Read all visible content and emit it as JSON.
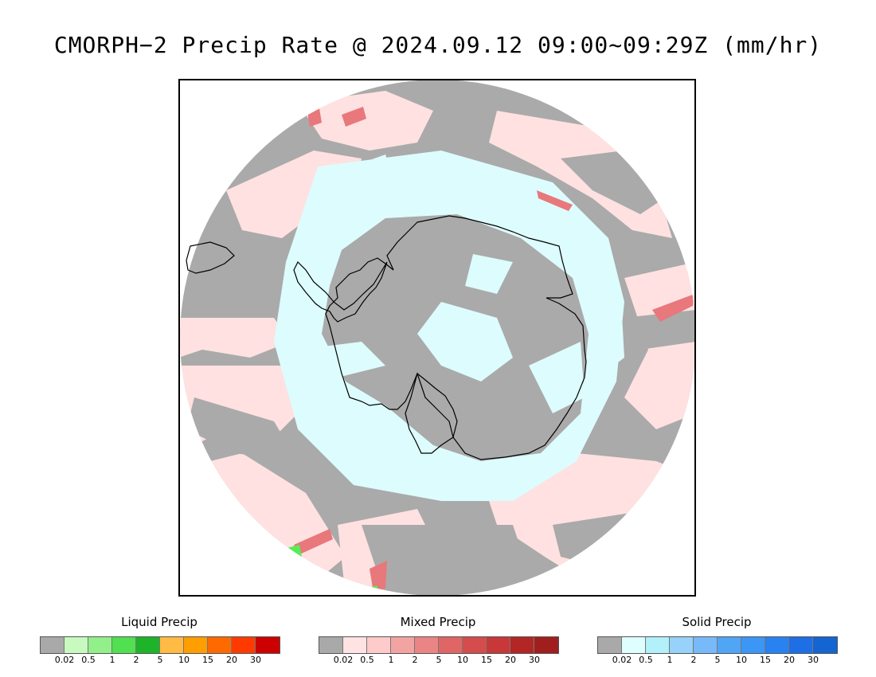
{
  "title": "CMORPH−2 Precip Rate @ 2024.09.12 09:00~09:29Z (mm/hr)",
  "map": {
    "projection": "south polar stereographic, circular extent",
    "category_colors": {
      "no_precip": "#ffffff",
      "below_threshold": "#aaaaaa",
      "mixed_light": "#ffe1e1",
      "solid_light": "#ddfcfd",
      "mixed_moderate": "#e8787b",
      "liquid_light": "#55ee55",
      "coastline": "#000000"
    }
  },
  "legends": [
    {
      "title": "Liquid Precip",
      "colors": [
        "#a9a9a9",
        "#c8fac0",
        "#92f08a",
        "#50e050",
        "#1eb42a",
        "#ffbb44",
        "#ff9e00",
        "#ff6a00",
        "#ff3a00",
        "#cc0000"
      ],
      "ticks": [
        "0.02",
        "0.5",
        "1",
        "2",
        "5",
        "10",
        "15",
        "20",
        "30"
      ]
    },
    {
      "title": "Mixed Precip",
      "colors": [
        "#a9a9a9",
        "#ffe2e2",
        "#ffcaca",
        "#f4a3a3",
        "#eb8585",
        "#e06666",
        "#d44c4c",
        "#c83838",
        "#b22626",
        "#a01e1e"
      ],
      "ticks": [
        "0.02",
        "0.5",
        "1",
        "2",
        "5",
        "10",
        "15",
        "20",
        "30"
      ]
    },
    {
      "title": "Solid Precip",
      "colors": [
        "#a9a9a9",
        "#dffefe",
        "#b2f0fa",
        "#96d2fa",
        "#78b9fa",
        "#50a5f5",
        "#3c96f5",
        "#2882f0",
        "#1e6ee6",
        "#1464d2"
      ],
      "ticks": [
        "0.02",
        "0.5",
        "1",
        "2",
        "5",
        "10",
        "15",
        "20",
        "30"
      ]
    }
  ]
}
